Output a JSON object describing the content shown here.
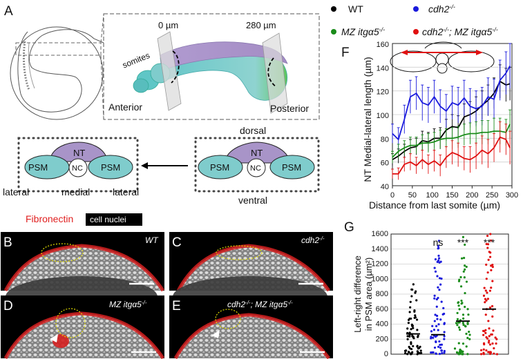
{
  "panels": {
    "A": {
      "label": "A",
      "positions": {
        "start": "0 µm",
        "end": "280 µm"
      },
      "somites": "somites",
      "anterior": "Anterior",
      "posterior": "Posterior",
      "dorsal": "dorsal",
      "ventral": "ventral",
      "lateral": "lateral",
      "medial": "medial",
      "nt": "NT",
      "nc": "NC",
      "psm": "PSM",
      "colors": {
        "nt": "#a894c8",
        "psm": "#7fcccc",
        "nc": "#ffffff"
      }
    },
    "micro": {
      "legend_red": "Fibronectin",
      "legend_white": "cell nuclei",
      "B": {
        "label": "B",
        "genotype": "WT"
      },
      "C": {
        "label": "C",
        "genotype": "cdh2"
      },
      "D": {
        "label": "D",
        "genotype": "MZ itgα5"
      },
      "E": {
        "label": "E",
        "genotype": "cdh2; MZ itgα5"
      },
      "genotype_sup": "-/-"
    },
    "legend": {
      "wt": "WT",
      "cdh2": "cdh2",
      "itga5": "MZ itgα5",
      "double_a": "cdh2",
      "double_b": "; MZ itgα5",
      "sup": "-/-",
      "colors": {
        "wt": "#000000",
        "cdh2": "#1a1adc",
        "itga5": "#1a8c1a",
        "double": "#e01010"
      }
    }
  },
  "chart_data": [
    {
      "panel": "F",
      "type": "line",
      "xlabel": "Distance from last somite (µm)",
      "ylabel": "NT Medial-lateral length (µm)",
      "xlim": [
        0,
        300
      ],
      "ylim": [
        40,
        160
      ],
      "xticks": [
        0,
        50,
        100,
        150,
        200,
        250,
        300
      ],
      "yticks": [
        40,
        60,
        80,
        100,
        120,
        140,
        160
      ],
      "x": [
        0,
        15,
        30,
        45,
        60,
        75,
        90,
        105,
        120,
        135,
        150,
        165,
        180,
        195,
        210,
        225,
        240,
        255,
        270,
        285,
        295
      ],
      "series": [
        {
          "name": "WT",
          "key": "wt",
          "values": [
            62,
            65,
            69,
            72,
            73,
            78,
            77,
            80,
            80,
            87,
            90,
            89,
            98,
            100,
            103,
            108,
            112,
            118,
            128,
            125,
            126
          ],
          "err": [
            5,
            6,
            6,
            7,
            7,
            8,
            8,
            8,
            9,
            9,
            10,
            10,
            11,
            11,
            12,
            12,
            13,
            13,
            14,
            14,
            14
          ]
        },
        {
          "name": "cdh2",
          "key": "cdh2",
          "values": [
            84,
            79,
            96,
            115,
            118,
            110,
            108,
            115,
            107,
            103,
            110,
            108,
            114,
            107,
            105,
            107,
            115,
            113,
            129,
            135,
            141
          ],
          "err": [
            8,
            10,
            12,
            14,
            14,
            15,
            15,
            14,
            14,
            14,
            14,
            15,
            15,
            15,
            15,
            16,
            16,
            17,
            17,
            18,
            19
          ]
        },
        {
          "name": "MZ itgα5",
          "key": "itga5",
          "values": [
            64,
            69,
            72,
            74,
            74,
            76,
            76,
            77,
            79,
            80,
            80,
            81,
            83,
            84,
            84,
            85,
            85,
            86,
            86,
            85,
            92
          ],
          "err": [
            5,
            6,
            6,
            7,
            7,
            7,
            8,
            8,
            8,
            8,
            9,
            9,
            9,
            9,
            10,
            10,
            10,
            11,
            11,
            11,
            12
          ]
        },
        {
          "name": "cdh2; MZ itgα5",
          "key": "double",
          "values": [
            50,
            50,
            58,
            60,
            57,
            62,
            58,
            61,
            57,
            64,
            68,
            66,
            63,
            62,
            65,
            70,
            67,
            72,
            81,
            79,
            72
          ],
          "err": [
            4,
            5,
            6,
            7,
            7,
            8,
            8,
            9,
            9,
            9,
            10,
            10,
            10,
            11,
            11,
            12,
            12,
            12,
            13,
            13,
            14
          ]
        }
      ]
    },
    {
      "panel": "G",
      "type": "scatter",
      "ylabel": "Left-right difference in PSM area (µm²)",
      "ylim": [
        0,
        1600
      ],
      "yticks": [
        0,
        200,
        400,
        600,
        800,
        1000,
        1200,
        1400,
        1600
      ],
      "groups": [
        {
          "key": "wt",
          "median": 270,
          "max": 930,
          "significance": ""
        },
        {
          "key": "cdh2",
          "median": 260,
          "max": 1510,
          "significance": "ns"
        },
        {
          "key": "itga5",
          "median": 440,
          "max": 1560,
          "significance": "***"
        },
        {
          "key": "double",
          "median": 600,
          "max": 1600,
          "significance": "***"
        }
      ]
    }
  ]
}
